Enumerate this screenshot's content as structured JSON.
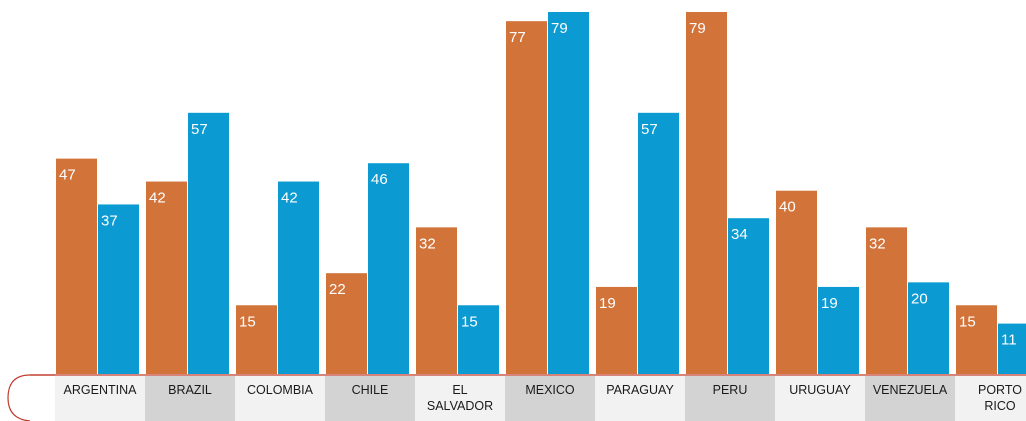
{
  "chart_data": {
    "type": "bar",
    "categories": [
      "ARGENTINA",
      "BRAZIL",
      "COLOMBIA",
      "CHILE",
      "EL SALVADOR",
      "MEXICO",
      "PARAGUAY",
      "PERU",
      "URUGUAY",
      "VENEZUELA",
      "PORTO RICO"
    ],
    "series": [
      {
        "values": [
          47,
          42,
          15,
          22,
          32,
          77,
          19,
          79,
          40,
          32,
          15
        ],
        "color": "#d2733a"
      },
      {
        "values": [
          37,
          57,
          42,
          46,
          15,
          79,
          57,
          34,
          19,
          20,
          11
        ],
        "color": "#0b9ad2"
      }
    ],
    "ylim": [
      0,
      80
    ],
    "grid": false,
    "legend": "none",
    "band_colors": [
      "#f2f2f2",
      "#d3d3d3"
    ],
    "band_border_color": "#c0392b"
  }
}
